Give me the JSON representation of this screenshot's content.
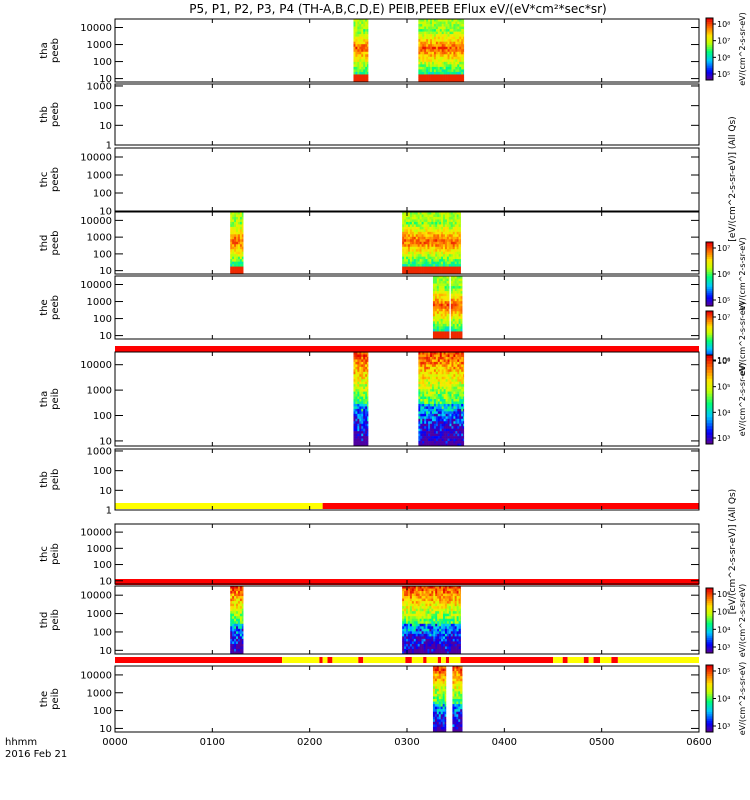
{
  "chart_data": {
    "type": "heatmap",
    "title": "P5, P1, P2, P3, P4 (TH-A,B,C,D,E) PEIB,PEEB EFlux eV/(eV*cm²*sec*sr)",
    "x_axis": {
      "range_min": [
        0,
        360
      ],
      "tick_minutes": [
        0,
        60,
        120,
        180,
        240,
        300,
        360
      ],
      "tick_labels": [
        "0000",
        "0100",
        "0200",
        "0300",
        "0400",
        "0500",
        "0600"
      ],
      "label_line1": "hhmm",
      "label_line2": "2016 Feb 21"
    },
    "panels": [
      {
        "name": "tha_peeb",
        "label_line1": "tha",
        "label_line2": "peeb",
        "y_ticks": [
          "10000",
          "1000",
          "100",
          "10"
        ],
        "y_decades": [
          10000,
          1000,
          100,
          10
        ],
        "ylim_log": [
          0.8,
          4.5
        ],
        "data_intervals": [
          [
            147,
            156
          ],
          [
            187,
            215
          ]
        ],
        "colorbar": {
          "tick_labels": [
            "10⁸",
            "10⁷",
            "10⁶",
            "10⁵"
          ],
          "label": "eV/(cm^2-s-sr-eV)"
        }
      },
      {
        "name": "thb_peeb",
        "label_line1": "thb",
        "label_line2": "peeb",
        "y_ticks": [
          "1000",
          "100",
          "10",
          "1"
        ],
        "y_decades": [
          1000,
          100,
          10,
          1
        ],
        "ylim_log": [
          0,
          3.1
        ],
        "data_intervals": []
      },
      {
        "name": "thc_peeb",
        "label_line1": "thc",
        "label_line2": "peeb",
        "y_ticks": [
          "10000",
          "1000",
          "100",
          "10"
        ],
        "y_decades": [
          10000,
          1000,
          100,
          10
        ],
        "ylim_log": [
          1,
          4.5
        ],
        "data_intervals": []
      },
      {
        "name": "thd_peeb",
        "label_line1": "thd",
        "label_line2": "peeb",
        "y_ticks": [
          "10000",
          "1000",
          "100",
          "10"
        ],
        "y_decades": [
          10000,
          1000,
          100,
          10
        ],
        "ylim_log": [
          0.8,
          4.5
        ],
        "data_intervals": [
          [
            71,
            79
          ],
          [
            177,
            213
          ]
        ],
        "colorbar": {
          "tick_labels": [
            "10⁷",
            "10⁶",
            "10⁵"
          ],
          "label": "eV/(cm^2-s-sr-eV)"
        }
      },
      {
        "name": "the_peeb",
        "label_line1": "the",
        "label_line2": "peeb",
        "y_ticks": [
          "10000",
          "1000",
          "100",
          "10"
        ],
        "y_decades": [
          10000,
          1000,
          100,
          10
        ],
        "ylim_log": [
          0.8,
          4.5
        ],
        "data_intervals": [
          [
            196,
            206
          ],
          [
            207,
            214
          ]
        ],
        "colorbar": {
          "tick_labels": [
            "10⁷",
            "10⁶"
          ],
          "label": "eV/(cm^2-s-sr-eV)"
        }
      },
      {
        "name": "tha_peib",
        "label_line1": "tha",
        "label_line2": "peib",
        "y_ticks": [
          "10000",
          "1000",
          "100",
          "10"
        ],
        "y_decades": [
          10000,
          1000,
          100,
          10
        ],
        "ylim_log": [
          0.8,
          4.5
        ],
        "data_intervals": [
          [
            147,
            156
          ],
          [
            187,
            215
          ]
        ],
        "colorbar": {
          "tick_labels": [
            "10⁶",
            "10⁵",
            "10⁴",
            "10³"
          ],
          "label": "eV/(cm^2-s-sr-eV)"
        }
      },
      {
        "name": "thb_peib",
        "label_line1": "thb",
        "label_line2": "peib",
        "y_ticks": [
          "1000",
          "100",
          "10",
          "1"
        ],
        "y_decades": [
          1000,
          100,
          10,
          1
        ],
        "ylim_log": [
          0,
          3.1
        ],
        "data_intervals": []
      },
      {
        "name": "thc_peib",
        "label_line1": "thc",
        "label_line2": "peib",
        "y_ticks": [
          "10000",
          "1000",
          "100",
          "10"
        ],
        "y_decades": [
          10000,
          1000,
          100,
          10
        ],
        "ylim_log": [
          0.8,
          4.5
        ],
        "data_intervals": []
      },
      {
        "name": "thd_peib",
        "label_line1": "thd",
        "label_line2": "peib",
        "y_ticks": [
          "10000",
          "1000",
          "100",
          "10"
        ],
        "y_decades": [
          10000,
          1000,
          100,
          10
        ],
        "ylim_log": [
          0.8,
          4.5
        ],
        "data_intervals": [
          [
            71,
            79
          ],
          [
            177,
            213
          ]
        ],
        "colorbar": {
          "tick_labels": [
            "10⁶",
            "10⁵",
            "10⁴",
            "10³"
          ],
          "label": "eV/(cm^2-s-sr-eV)"
        }
      },
      {
        "name": "the_peib",
        "label_line1": "the",
        "label_line2": "peib",
        "y_ticks": [
          "10000",
          "1000",
          "100",
          "10"
        ],
        "y_decades": [
          10000,
          1000,
          100,
          10
        ],
        "ylim_log": [
          0.8,
          4.5
        ],
        "data_intervals": [
          [
            196,
            204
          ],
          [
            208,
            214
          ]
        ],
        "colorbar": {
          "tick_labels": [
            "10⁵",
            "10⁴",
            "10³"
          ],
          "label": "eV/(cm^2-s-sr-eV)"
        }
      }
    ],
    "status_bars": [
      {
        "after_panel": 4,
        "segments": [
          {
            "start": 0,
            "end": 360,
            "color": "#ff0000"
          }
        ]
      },
      {
        "after_panel": 6,
        "segments": [
          {
            "start": 0,
            "end": 128,
            "color": "#ffff00"
          },
          {
            "start": 128,
            "end": 360,
            "color": "#ff0000"
          }
        ]
      },
      {
        "after_panel": 7,
        "segments": [
          {
            "start": 0,
            "end": 360,
            "color": "#ff0000"
          }
        ]
      },
      {
        "after_panel": 8,
        "segments": [
          {
            "start": 0,
            "end": 103,
            "color": "#ff0000"
          },
          {
            "start": 103,
            "end": 126,
            "color": "#ffff00"
          },
          {
            "start": 126,
            "end": 128,
            "color": "#ff0000"
          },
          {
            "start": 128,
            "end": 131,
            "color": "#ffff00"
          },
          {
            "start": 131,
            "end": 134,
            "color": "#ff0000"
          },
          {
            "start": 134,
            "end": 150,
            "color": "#ffff00"
          },
          {
            "start": 150,
            "end": 153,
            "color": "#ff0000"
          },
          {
            "start": 153,
            "end": 179,
            "color": "#ffff00"
          },
          {
            "start": 179,
            "end": 183,
            "color": "#ff0000"
          },
          {
            "start": 183,
            "end": 190,
            "color": "#ffff00"
          },
          {
            "start": 190,
            "end": 192,
            "color": "#ff0000"
          },
          {
            "start": 192,
            "end": 199,
            "color": "#ffff00"
          },
          {
            "start": 199,
            "end": 201,
            "color": "#ff0000"
          },
          {
            "start": 201,
            "end": 204,
            "color": "#ffff00"
          },
          {
            "start": 204,
            "end": 206,
            "color": "#ff0000"
          },
          {
            "start": 206,
            "end": 213,
            "color": "#ffff00"
          },
          {
            "start": 213,
            "end": 270,
            "color": "#ff0000"
          },
          {
            "start": 270,
            "end": 276,
            "color": "#ffff00"
          },
          {
            "start": 276,
            "end": 279,
            "color": "#ff0000"
          },
          {
            "start": 279,
            "end": 289,
            "color": "#ffff00"
          },
          {
            "start": 289,
            "end": 292,
            "color": "#ff0000"
          },
          {
            "start": 292,
            "end": 295,
            "color": "#ffff00"
          },
          {
            "start": 295,
            "end": 299,
            "color": "#ff0000"
          },
          {
            "start": 299,
            "end": 306,
            "color": "#ffff00"
          },
          {
            "start": 306,
            "end": 310,
            "color": "#ff0000"
          },
          {
            "start": 310,
            "end": 360,
            "color": "#ffff00"
          }
        ]
      }
    ],
    "side_labels": [
      {
        "text": "[eV/(cm^2-s-sr-eV)] (All Qs)",
        "panel_from": 1,
        "panel_to": 3
      },
      {
        "text": "[eV/(cm^2-s-sr-eV)] (All Qs)",
        "panel_from": 6,
        "panel_to": 8
      }
    ]
  }
}
